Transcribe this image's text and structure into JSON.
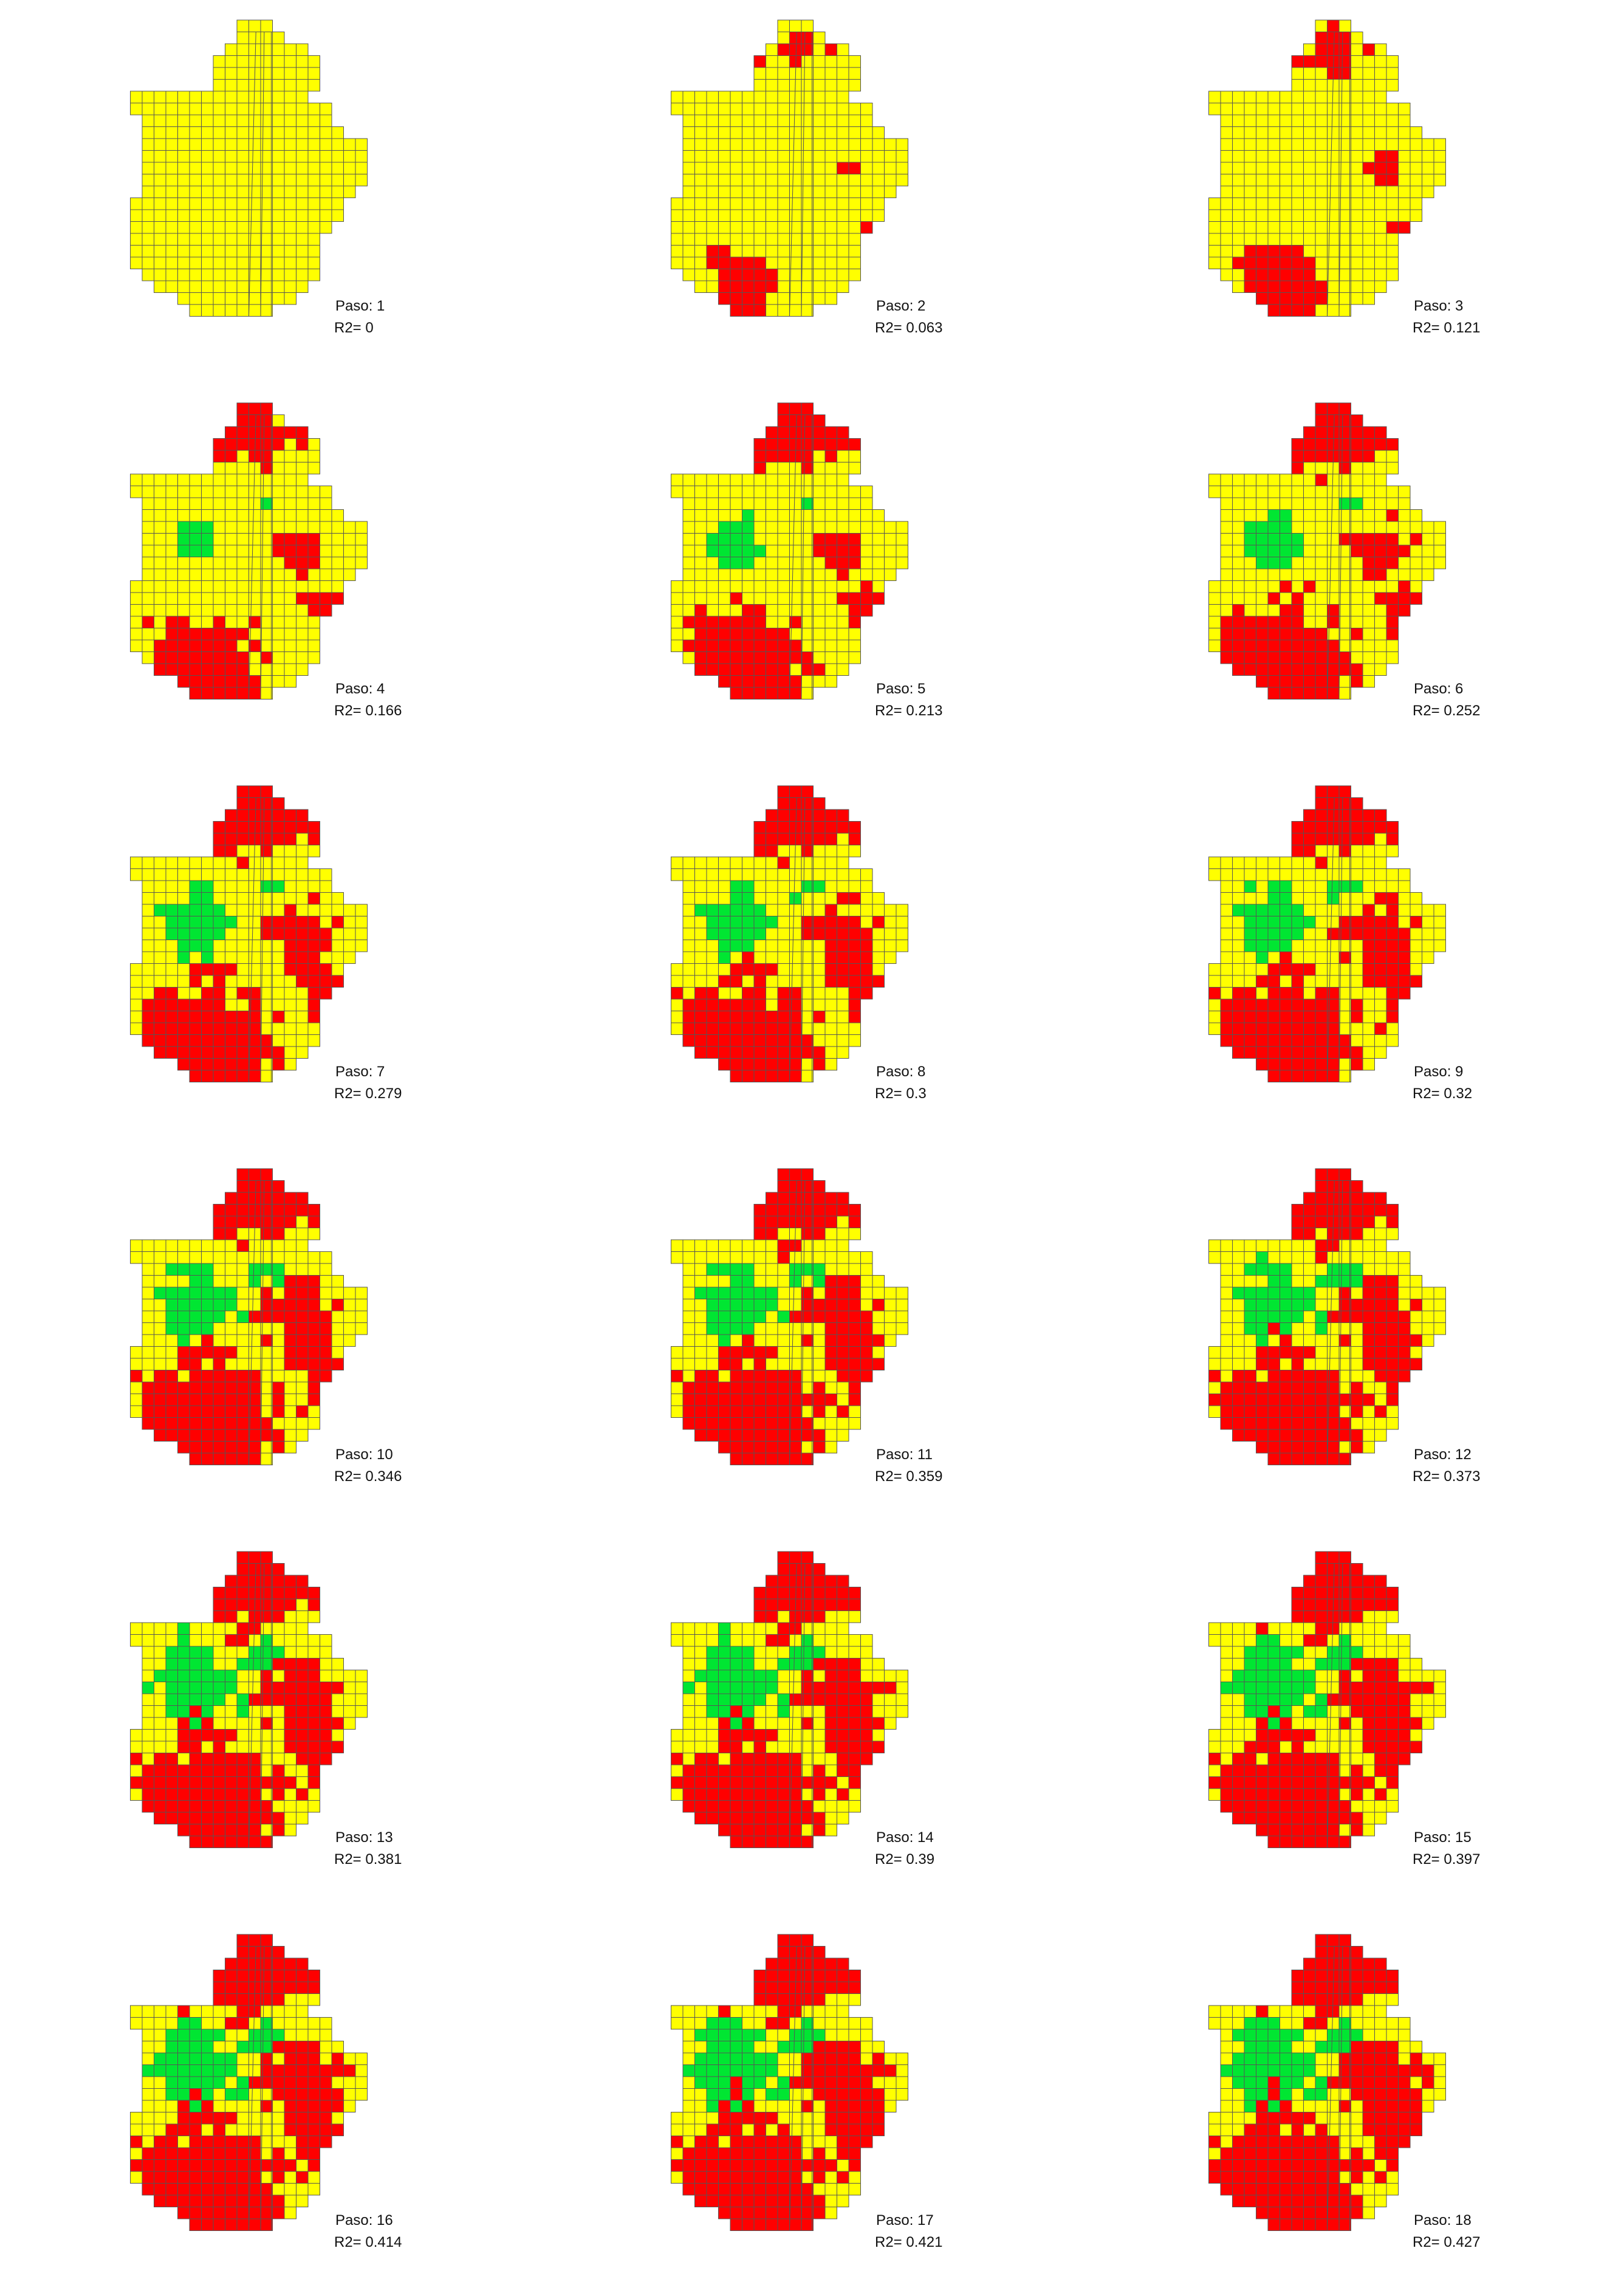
{
  "legend_colors": {
    "neutral": "#ffff00",
    "positive": "#ff0000",
    "negative": "#00e632",
    "gridline": "#555555"
  },
  "panels": [
    {
      "paso_label": "Paso:  1",
      "r2_label": "R2= 0",
      "step": 1,
      "r2": 0,
      "red": 0,
      "green": 0
    },
    {
      "paso_label": "Paso:  2",
      "r2_label": "R2= 0.063",
      "step": 2,
      "r2": 0.063,
      "red": 0.1,
      "green": 0
    },
    {
      "paso_label": "Paso:  3",
      "r2_label": "R2= 0.121",
      "step": 3,
      "r2": 0.121,
      "red": 0.17,
      "green": 0
    },
    {
      "paso_label": "Paso:  4",
      "r2_label": "R2= 0.166",
      "step": 4,
      "r2": 0.166,
      "red": 0.27,
      "green": 0.03
    },
    {
      "paso_label": "Paso:  5",
      "r2_label": "R2= 0.213",
      "step": 5,
      "r2": 0.213,
      "red": 0.33,
      "green": 0.05
    },
    {
      "paso_label": "Paso:  6",
      "r2_label": "R2= 0.252",
      "step": 6,
      "r2": 0.252,
      "red": 0.38,
      "green": 0.06
    },
    {
      "paso_label": "Paso:  7",
      "r2_label": "R2= 0.279",
      "step": 7,
      "r2": 0.279,
      "red": 0.42,
      "green": 0.08
    },
    {
      "paso_label": "Paso:  8",
      "r2_label": "R2= 0.3",
      "step": 8,
      "r2": 0.3,
      "red": 0.44,
      "green": 0.08
    },
    {
      "paso_label": "Paso:  9",
      "r2_label": "R2= 0.32",
      "step": 9,
      "r2": 0.32,
      "red": 0.46,
      "green": 0.09
    },
    {
      "paso_label": "Paso:  10",
      "r2_label": "R2= 0.346",
      "step": 10,
      "r2": 0.346,
      "red": 0.48,
      "green": 0.1
    },
    {
      "paso_label": "Paso:  11",
      "r2_label": "R2= 0.359",
      "step": 11,
      "r2": 0.359,
      "red": 0.5,
      "green": 0.1
    },
    {
      "paso_label": "Paso:  12",
      "r2_label": "R2= 0.373",
      "step": 12,
      "r2": 0.373,
      "red": 0.51,
      "green": 0.11
    },
    {
      "paso_label": "Paso:  13",
      "r2_label": "R2= 0.381",
      "step": 13,
      "r2": 0.381,
      "red": 0.52,
      "green": 0.12
    },
    {
      "paso_label": "Paso:  14",
      "r2_label": "R2= 0.39",
      "step": 14,
      "r2": 0.39,
      "red": 0.53,
      "green": 0.12
    },
    {
      "paso_label": "Paso:  15",
      "r2_label": "R2= 0.397",
      "step": 15,
      "r2": 0.397,
      "red": 0.54,
      "green": 0.13
    },
    {
      "paso_label": "Paso:  16",
      "r2_label": "R2= 0.414",
      "step": 16,
      "r2": 0.414,
      "red": 0.55,
      "green": 0.13
    },
    {
      "paso_label": "Paso:  17",
      "r2_label": "R2= 0.421",
      "step": 17,
      "r2": 0.421,
      "red": 0.56,
      "green": 0.14
    },
    {
      "paso_label": "Paso:  18",
      "r2_label": "R2= 0.427",
      "step": 18,
      "r2": 0.427,
      "red": 0.57,
      "green": 0.14
    }
  ]
}
